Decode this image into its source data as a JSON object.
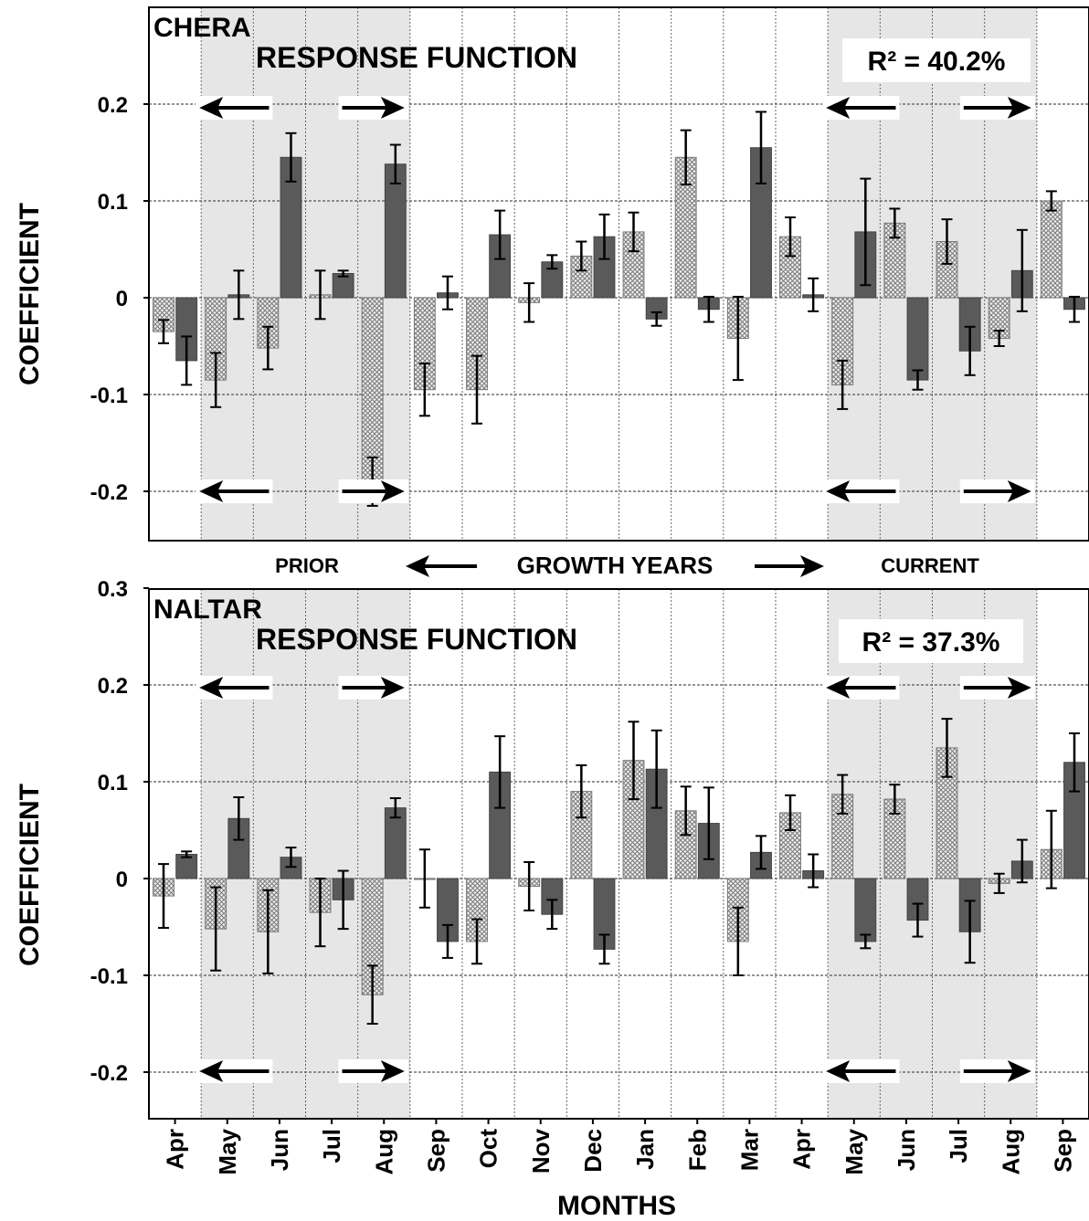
{
  "shared": {
    "months": [
      "Apr",
      "May",
      "Jun",
      "Jul",
      "Aug",
      "Sep",
      "Oct",
      "Nov",
      "Dec",
      "Jan",
      "Feb",
      "Mar",
      "Apr",
      "May",
      "Jun",
      "Jul",
      "Aug",
      "Sep"
    ],
    "y_axis_label": "COEFFICIENT",
    "x_axis_label": "MONTHS",
    "prior_label": "PRIOR",
    "growth_years_label": "GROWTH YEARS",
    "current_label": "CURRENT",
    "colors": {
      "precip_pattern": "#9a9a9a",
      "temp_bar": "#5a5a5a",
      "shade": "#e6e6e6",
      "grid": "#555555"
    }
  },
  "chart_data": [
    {
      "type": "bar",
      "site": "CHERA",
      "title": "RESPONSE FUNCTION",
      "r2_text": "R² = 40.2%",
      "ylim": [
        -0.25,
        0.3
      ],
      "yticks": [
        "0.2",
        "0.1",
        "0",
        "-0.1",
        "-0.2"
      ],
      "categories": [
        "Apr",
        "May",
        "Jun",
        "Jul",
        "Aug",
        "Sep",
        "Oct",
        "Nov",
        "Dec",
        "Jan",
        "Feb",
        "Mar",
        "Apr",
        "May",
        "Jun",
        "Jul",
        "Aug",
        "Sep"
      ],
      "series": [
        {
          "values": [
            -0.035,
            -0.085,
            -0.052,
            0.003,
            -0.19,
            -0.095,
            -0.095,
            -0.005,
            0.043,
            0.068,
            0.145,
            -0.042,
            0.063,
            -0.09,
            0.077,
            0.058,
            -0.042,
            0.1
          ],
          "errors": [
            0.012,
            0.028,
            0.022,
            0.025,
            0.025,
            0.027,
            0.035,
            0.02,
            0.015,
            0.02,
            0.028,
            0.043,
            0.02,
            0.025,
            0.015,
            0.023,
            0.008,
            0.01
          ]
        },
        {
          "values": [
            -0.065,
            0.003,
            0.145,
            0.025,
            0.138,
            0.005,
            0.065,
            0.037,
            0.063,
            -0.022,
            -0.012,
            0.155,
            0.003,
            0.068,
            -0.085,
            -0.055,
            0.028,
            -0.012
          ],
          "errors": [
            0.025,
            0.025,
            0.025,
            0.003,
            0.02,
            0.017,
            0.025,
            0.007,
            0.023,
            0.007,
            0.013,
            0.037,
            0.017,
            0.055,
            0.01,
            0.025,
            0.042,
            0.013
          ]
        }
      ]
    },
    {
      "type": "bar",
      "site": "NALTAR",
      "title": "RESPONSE FUNCTION",
      "r2_text": "R² = 37.3%",
      "ylim": [
        -0.25,
        0.3
      ],
      "yticks": [
        "0.3",
        "0.2",
        "0.1",
        "0",
        "-0.1",
        "-0.2"
      ],
      "categories": [
        "Apr",
        "May",
        "Jun",
        "Jul",
        "Aug",
        "Sep",
        "Oct",
        "Nov",
        "Dec",
        "Jan",
        "Feb",
        "Mar",
        "Apr",
        "May",
        "Jun",
        "Jul",
        "Aug",
        "Sep"
      ],
      "series": [
        {
          "values": [
            -0.018,
            -0.052,
            -0.055,
            -0.035,
            -0.12,
            0.0,
            -0.065,
            -0.008,
            0.09,
            0.122,
            0.07,
            -0.065,
            0.068,
            0.087,
            0.082,
            0.135,
            -0.005,
            0.03
          ],
          "errors": [
            0.033,
            0.043,
            0.043,
            0.035,
            0.03,
            0.03,
            0.023,
            0.025,
            0.027,
            0.04,
            0.025,
            0.035,
            0.018,
            0.02,
            0.015,
            0.03,
            0.01,
            0.04
          ]
        },
        {
          "values": [
            0.025,
            0.062,
            0.022,
            -0.022,
            0.073,
            -0.065,
            0.11,
            -0.037,
            -0.073,
            0.113,
            0.057,
            0.027,
            0.008,
            -0.065,
            -0.043,
            -0.055,
            0.018,
            0.12
          ],
          "errors": [
            0.003,
            0.022,
            0.01,
            0.03,
            0.01,
            0.017,
            0.037,
            0.015,
            0.015,
            0.04,
            0.037,
            0.017,
            0.017,
            0.007,
            0.017,
            0.032,
            0.022,
            0.03
          ]
        }
      ]
    }
  ]
}
